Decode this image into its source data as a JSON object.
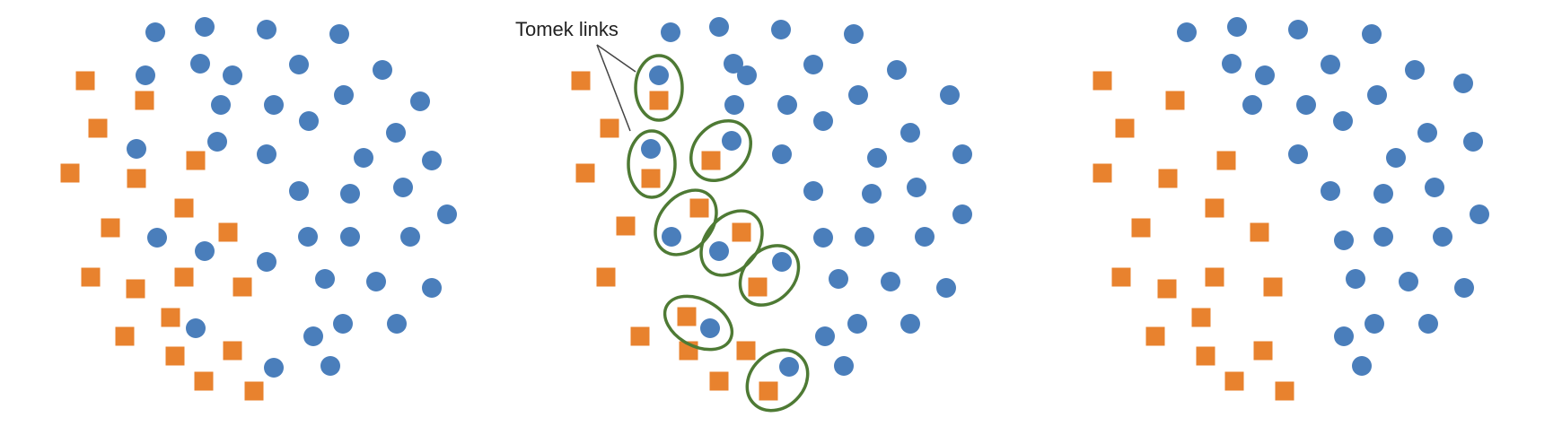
{
  "annotation": {
    "label": "Tomek links"
  },
  "colors": {
    "majority": "#4a7ebb",
    "minority": "#e8822e",
    "link_ellipse": "#4e7a34",
    "pointer_line": "#444444",
    "background": "#ffffff"
  },
  "panels": [
    {
      "id": "original",
      "tomek_pairs": 0
    },
    {
      "id": "tomek-links-identified",
      "tomek_pairs": 8
    },
    {
      "id": "after-removal",
      "tomek_pairs": 0
    }
  ]
}
